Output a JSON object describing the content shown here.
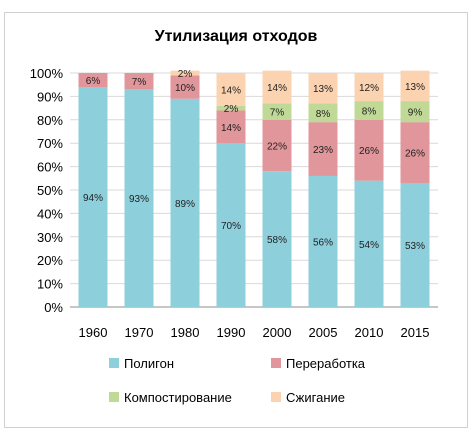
{
  "top_fragment": "",
  "chart_data": {
    "type": "bar",
    "stacked": true,
    "title": "Утилизация отходов",
    "xlabel": "",
    "ylabel": "",
    "ylim": [
      0,
      100
    ],
    "y_tick_labels": [
      "0%",
      "10%",
      "20%",
      "30%",
      "40%",
      "50%",
      "60%",
      "70%",
      "80%",
      "90%",
      "100%"
    ],
    "categories": [
      "1960",
      "1970",
      "1980",
      "1990",
      "2000",
      "2005",
      "2010",
      "2015"
    ],
    "series": [
      {
        "name": "Полигон",
        "color": "#8ecfdc",
        "values": [
          94,
          93,
          89,
          70,
          58,
          56,
          54,
          53
        ],
        "labels": [
          "94%",
          "93%",
          "89%",
          "70%",
          "58%",
          "56%",
          "54%",
          "53%"
        ]
      },
      {
        "name": "Переработка",
        "color": "#e0969a",
        "values": [
          6,
          7,
          10,
          14,
          22,
          23,
          26,
          26
        ],
        "labels": [
          "6%",
          "7%",
          "10%",
          "14%",
          "22%",
          "23%",
          "26%",
          "26%"
        ]
      },
      {
        "name": "Компостирование",
        "color": "#c0d997",
        "values": [
          0,
          0,
          0,
          2,
          7,
          8,
          8,
          9
        ],
        "labels": [
          "",
          "",
          "",
          "2%",
          "7%",
          "8%",
          "8%",
          "9%"
        ]
      },
      {
        "name": "Сжигание",
        "color": "#fbd3b0",
        "values": [
          0,
          0,
          2,
          14,
          14,
          13,
          12,
          13
        ],
        "labels": [
          "",
          "",
          "2%",
          "14%",
          "14%",
          "13%",
          "12%",
          "13%"
        ]
      }
    ],
    "legend_position": "bottom",
    "grid": true
  }
}
